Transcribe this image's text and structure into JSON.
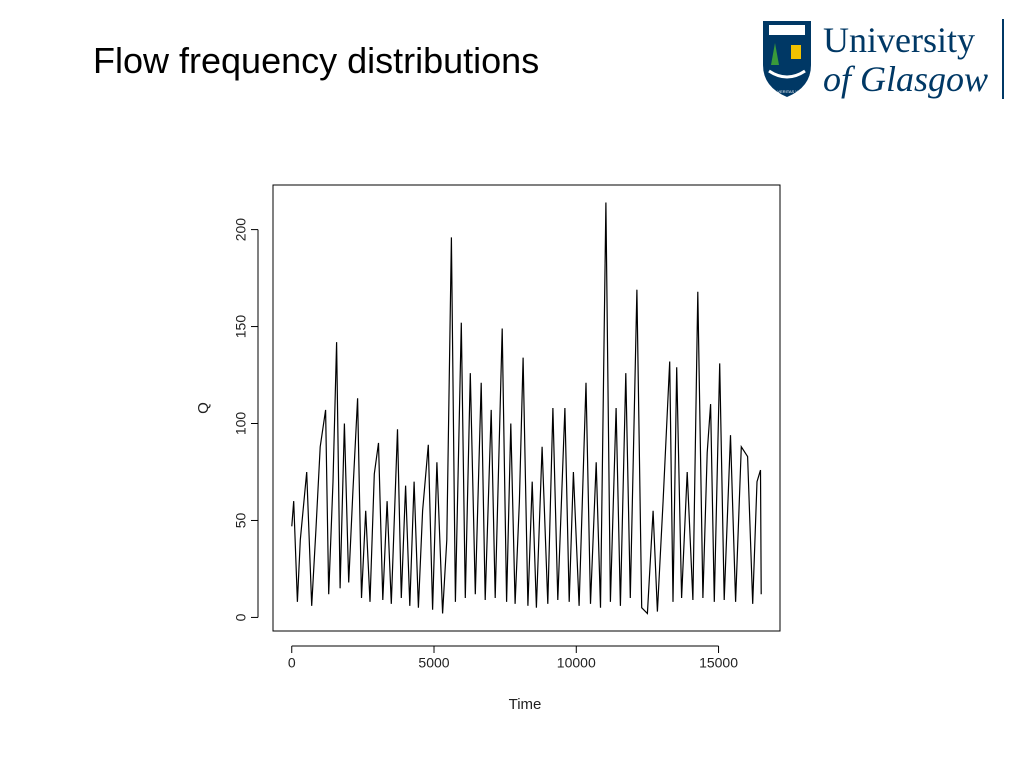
{
  "header": {
    "title": "Flow frequency distributions"
  },
  "logo": {
    "line1": "University",
    "line2": "of Glasgow",
    "motto": "VIA VERITAS VITA"
  },
  "chart_data": {
    "type": "line",
    "x_label": "Time",
    "y_label": "Q",
    "xlim": [
      -659,
      17160
    ],
    "ylim": [
      -7,
      223
    ],
    "xticks": [
      0,
      5000,
      10000,
      15000
    ],
    "yticks": [
      0,
      50,
      100,
      150,
      200
    ],
    "color": "#000000",
    "x": [
      1,
      70,
      200,
      300,
      525,
      700,
      850,
      1000,
      1190,
      1300,
      1450,
      1577,
      1700,
      1850,
      2000,
      2150,
      2313,
      2450,
      2600,
      2750,
      2900,
      3050,
      3200,
      3350,
      3500,
      3715,
      3850,
      4000,
      4150,
      4300,
      4450,
      4600,
      4800,
      4950,
      5100,
      5300,
      5450,
      5610,
      5750,
      5960,
      6100,
      6275,
      6450,
      6660,
      6800,
      7010,
      7150,
      7395,
      7550,
      7700,
      7850,
      8000,
      8130,
      8300,
      8450,
      8600,
      8800,
      9000,
      9180,
      9350,
      9600,
      9750,
      9900,
      10100,
      10340,
      10500,
      10700,
      10850,
      11040,
      11200,
      11400,
      11550,
      11740,
      11900,
      12130,
      12300,
      12500,
      12700,
      12850,
      13050,
      13285,
      13400,
      13530,
      13700,
      13900,
      14100,
      14270,
      14450,
      14600,
      14720,
      14850,
      15040,
      15200,
      15420,
      15600,
      15800,
      16020,
      16200,
      16350,
      16475,
      16500
    ],
    "values": [
      47,
      60,
      8,
      40,
      75,
      6,
      45,
      88,
      107,
      12,
      70,
      142,
      15,
      100,
      18,
      65,
      113,
      10,
      55,
      8,
      74,
      90,
      9,
      60,
      7,
      97,
      10,
      68,
      6,
      70,
      5,
      55,
      89,
      4,
      80,
      2,
      40,
      196,
      8,
      152,
      10,
      126,
      12,
      121,
      9,
      107,
      10,
      149,
      8,
      100,
      7,
      60,
      134,
      6,
      70,
      5,
      88,
      7,
      108,
      9,
      108,
      8,
      75,
      6,
      121,
      7,
      80,
      5,
      214,
      8,
      108,
      6,
      126,
      10,
      169,
      5,
      2,
      55,
      3,
      60,
      132,
      8,
      129,
      10,
      75,
      9,
      168,
      10,
      85,
      110,
      8,
      131,
      9,
      94,
      8,
      88,
      83,
      7,
      70,
      76,
      12
    ]
  }
}
